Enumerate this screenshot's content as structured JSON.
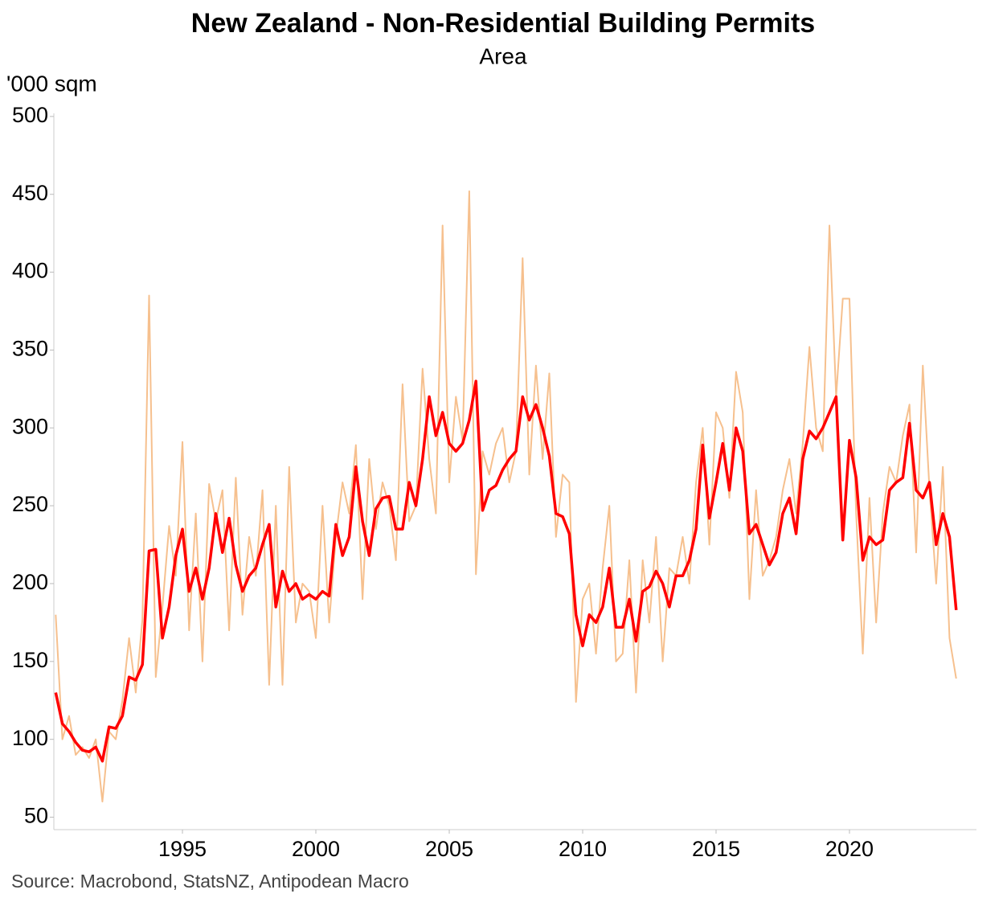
{
  "chart_data": {
    "type": "line",
    "title": "New Zealand - Non-Residential Building Permits",
    "subtitle": "Area",
    "y_label": "'000 sqm",
    "source": "Source: Macrobond, StatsNZ, Antipodean Macro",
    "x": [
      1990.25,
      1990.5,
      1990.75,
      1991,
      1991.25,
      1991.5,
      1991.75,
      1992,
      1992.25,
      1992.5,
      1992.75,
      1993,
      1993.25,
      1993.5,
      1993.75,
      1994,
      1994.25,
      1994.5,
      1994.75,
      1995,
      1995.25,
      1995.5,
      1995.75,
      1996,
      1996.25,
      1996.5,
      1996.75,
      1997,
      1997.25,
      1997.5,
      1997.75,
      1998,
      1998.25,
      1998.5,
      1998.75,
      1999,
      1999.25,
      1999.5,
      1999.75,
      2000,
      2000.25,
      2000.5,
      2000.75,
      2001,
      2001.25,
      2001.5,
      2001.75,
      2002,
      2002.25,
      2002.5,
      2002.75,
      2003,
      2003.25,
      2003.5,
      2003.75,
      2004,
      2004.25,
      2004.5,
      2004.75,
      2005,
      2005.25,
      2005.5,
      2005.75,
      2006,
      2006.25,
      2006.5,
      2006.75,
      2007,
      2007.25,
      2007.5,
      2007.75,
      2008,
      2008.25,
      2008.5,
      2008.75,
      2009,
      2009.25,
      2009.5,
      2009.75,
      2010,
      2010.25,
      2010.5,
      2010.75,
      2011,
      2011.25,
      2011.5,
      2011.75,
      2012,
      2012.25,
      2012.5,
      2012.75,
      2013,
      2013.25,
      2013.5,
      2013.75,
      2014,
      2014.25,
      2014.5,
      2014.75,
      2015,
      2015.25,
      2015.5,
      2015.75,
      2016,
      2016.25,
      2016.5,
      2016.75,
      2017,
      2017.25,
      2017.5,
      2017.75,
      2018,
      2018.25,
      2018.5,
      2018.75,
      2019,
      2019.25,
      2019.5,
      2019.75,
      2020,
      2020.25,
      2020.5,
      2020.75,
      2021,
      2021.25,
      2021.5,
      2021.75,
      2022,
      2022.25,
      2022.5,
      2022.75,
      2023,
      2023.25,
      2023.5,
      2023.75,
      2024
    ],
    "series": [
      {
        "color": "#f6c08e",
        "width": 2,
        "values": [
          180,
          100,
          115,
          90,
          95,
          88,
          100,
          60,
          105,
          100,
          125,
          165,
          130,
          177,
          385,
          140,
          185,
          237,
          205,
          291,
          170,
          245,
          150,
          264,
          240,
          260,
          170,
          268,
          180,
          230,
          205,
          260,
          135,
          250,
          135,
          275,
          175,
          200,
          195,
          165,
          250,
          175,
          230,
          265,
          245,
          289,
          190,
          280,
          235,
          265,
          250,
          215,
          328,
          240,
          250,
          338,
          280,
          245,
          430,
          265,
          320,
          292,
          452,
          206,
          285,
          270,
          290,
          300,
          265,
          285,
          409,
          270,
          340,
          280,
          335,
          230,
          270,
          265,
          124,
          190,
          200,
          155,
          210,
          250,
          150,
          155,
          215,
          130,
          215,
          175,
          230,
          150,
          210,
          205,
          230,
          200,
          265,
          300,
          225,
          310,
          300,
          255,
          336,
          310,
          190,
          260,
          205,
          215,
          230,
          260,
          280,
          245,
          290,
          352,
          300,
          285,
          430,
          320,
          383,
          383,
          245,
          155,
          255,
          175,
          245,
          275,
          265,
          295,
          315,
          220,
          340,
          260,
          200,
          275,
          165,
          139
        ]
      },
      {
        "color": "#ff0000",
        "width": 3.5,
        "values": [
          130,
          110,
          105,
          98,
          93,
          92,
          95,
          86,
          108,
          107,
          115,
          140,
          138,
          148,
          221,
          222,
          165,
          185,
          218,
          235,
          195,
          210,
          190,
          210,
          245,
          220,
          242,
          212,
          195,
          205,
          210,
          225,
          238,
          185,
          208,
          195,
          200,
          190,
          193,
          190,
          195,
          192,
          238,
          218,
          230,
          275,
          240,
          218,
          248,
          255,
          256,
          235,
          235,
          265,
          250,
          280,
          320,
          295,
          310,
          290,
          285,
          290,
          305,
          330,
          247,
          260,
          263,
          273,
          280,
          285,
          320,
          305,
          315,
          300,
          282,
          245,
          243,
          232,
          180,
          160,
          180,
          175,
          185,
          210,
          172,
          172,
          190,
          163,
          195,
          198,
          208,
          200,
          185,
          205,
          205,
          215,
          235,
          289,
          242,
          265,
          290,
          260,
          300,
          285,
          232,
          238,
          225,
          212,
          220,
          245,
          255,
          232,
          280,
          298,
          293,
          300,
          310,
          320,
          228,
          292,
          268,
          215,
          230,
          225,
          228,
          260,
          265,
          268,
          303,
          260,
          255,
          265,
          225,
          245,
          230,
          183
        ]
      }
    ],
    "xlim": [
      1990.18,
      2024.76
    ],
    "xticks": [
      1995,
      2000,
      2005,
      2010,
      2015,
      2020
    ],
    "ylim": [
      42,
      502
    ],
    "yticks": [
      50,
      100,
      150,
      200,
      250,
      300,
      350,
      400,
      450,
      500
    ]
  }
}
